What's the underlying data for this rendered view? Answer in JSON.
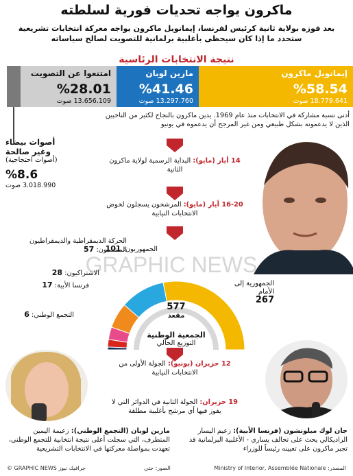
{
  "title": "ماكرون يواجه تحديات فورية لسلطته",
  "subtitle": "بعد فوزه بولاية ثانية كرئيس لفرنسا، إيمانويل ماكرون يواجه معركة انتخابات تشريعية ستحدد ما إذا كان سيحظى بأغلبية برلمانية للتصويت لصالح سياساته",
  "results_heading": "نتيجة الانتخابات الرئاسية",
  "results": {
    "macron": {
      "name": "إيمانويل ماكرون",
      "pct": "%58.54",
      "votes": "18.779.641 صوت",
      "value": 58.54,
      "color": "#f5b800"
    },
    "lepen": {
      "name": "مارين لوبان",
      "pct": "%41.46",
      "votes": "13.297.760 صوت",
      "value": 41.46,
      "color": "#1e73be"
    },
    "abstain": {
      "name": "امتنعوا عن التصويت",
      "pct": "%28.01",
      "votes": "13.656.109 صوت",
      "value": 28.01,
      "color": "#cfcfcf"
    }
  },
  "note": "أدنى نسبة مشاركة في الانتخابات منذ عام 1969. يدين ماكرون بالنجاح لكثير من الناخبين الذين لا يدعمونه بشكل طبيعي ومن غير المرجح أن يدعموه في يونيو",
  "blank": {
    "title": "أصوات بيضاء وغير صالحة",
    "sub": "(أصوات احتجاجية)",
    "pct": "%8.6",
    "votes": "3.018.990 صوت",
    "value": 8.6
  },
  "timeline": [
    {
      "date": "14 أيار (مايو):",
      "text": "البداية الرسمية لولاية ماكرون الثانية"
    },
    {
      "date": "16-20 أيار (مايو):",
      "text": "المرشحون يسجلون لخوض الانتخابات النيابية"
    },
    {
      "date": "12 حزيران (يونيو):",
      "text": "الجولة الأولى من الانتخابات النيابية"
    },
    {
      "date": "19 حزيران:",
      "text": "الجولة الثانية في الدوائر التي لا يفوز فيها أي مرشح بأغلبية مطلقة"
    }
  ],
  "assembly": {
    "total": "577",
    "total_label": "مقعد",
    "name": "الجمعية الوطنية",
    "sub": "التوزيع الحالي",
    "parties": [
      {
        "name": "الجمهورية إلى الأمام",
        "seats": "267",
        "value": 267,
        "color": "#f5b800"
      },
      {
        "name": "الجمهوريون:",
        "seats": "101",
        "value": 101,
        "color": "#29a8e0"
      },
      {
        "name": "الحركة الديمقراطية والديمقراطيون المنتسبون:",
        "seats": "57",
        "value": 57,
        "color": "#f08a1c"
      },
      {
        "name": "الاشتراكيون:",
        "seats": "28",
        "value": 28,
        "color": "#e84b8a"
      },
      {
        "name": "فرنسا الأبية:",
        "seats": "17",
        "value": 17,
        "color": "#d8261c"
      },
      {
        "name": "التجمع الوطني:",
        "seats": "6",
        "value": 6,
        "color": "#13315c"
      }
    ]
  },
  "watermark": "GRAPHIC NEWS",
  "bio_lepen": {
    "name": "مارين لوبان (التجمع الوطني):",
    "text": "زعيمة اليمين المتطرف، التي سجلت أعلى نتيجة انتخابية للتجمع الوطني، تعهدت بمواصلة معركتها في الانتخابات التشريعية"
  },
  "bio_melenchon": {
    "name": "جان لوك ميلونشون (فرنسا الأبية):",
    "text": "زعيم اليسار الراديكالي يحث على تحالف يساري - الأغلبية البرلمانية قد تجبر ماكرون على تعيينه رئيساً للوزراء"
  },
  "footer": {
    "source": "المصدر: Ministry of Interior, Assemblée Nationale",
    "photos": "الصور: جتي",
    "credit": "© GRAPHIC NEWS جرافيك نيوز"
  },
  "colors": {
    "accent": "#c0262c"
  }
}
